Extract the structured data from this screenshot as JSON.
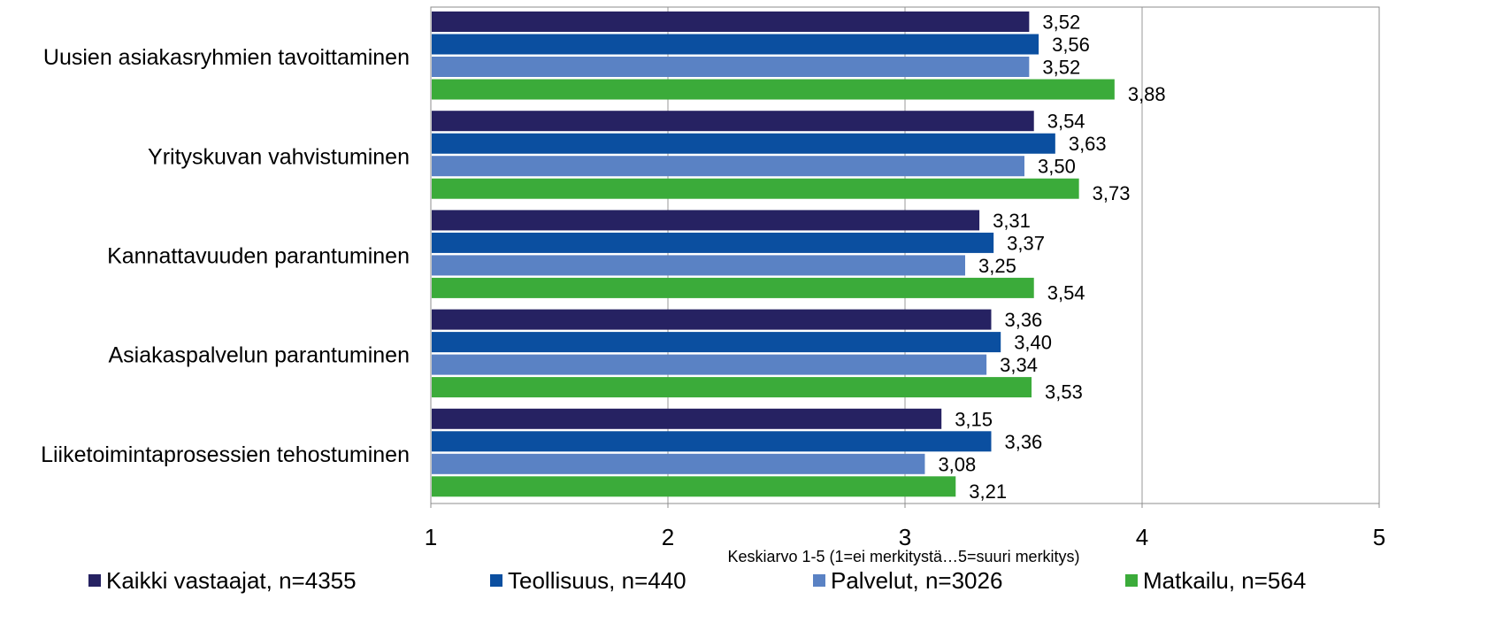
{
  "chart_data": {
    "type": "bar",
    "orientation": "horizontal",
    "categories": [
      "Uusien asiakasryhmien tavoittaminen",
      "Yrityskuvan vahvistuminen",
      "Kannattavuuden parantuminen",
      "Asiakaspalvelun parantuminen",
      "Liiketoimintaprosessien tehostuminen"
    ],
    "series": [
      {
        "name": "Kaikki vastaajat, n=4355",
        "color": "#262262",
        "values": [
          3.52,
          3.54,
          3.31,
          3.36,
          3.15
        ],
        "labels": [
          "3,52",
          "3,54",
          "3,31",
          "3,36",
          "3,15"
        ]
      },
      {
        "name": "Teollisuus, n=440",
        "color": "#0b4fa0",
        "values": [
          3.56,
          3.63,
          3.37,
          3.4,
          3.36
        ],
        "labels": [
          "3,56",
          "3,63",
          "3,37",
          "3,40",
          "3,36"
        ]
      },
      {
        "name": "Palvelut, n=3026",
        "color": "#5a82c4",
        "values": [
          3.52,
          3.5,
          3.25,
          3.34,
          3.08
        ],
        "labels": [
          "3,52",
          "3,50",
          "3,25",
          "3,34",
          "3,08"
        ]
      },
      {
        "name": "Matkailu, n=564",
        "color": "#3bab3a",
        "values": [
          3.88,
          3.73,
          3.54,
          3.53,
          3.21
        ],
        "labels": [
          "3,88",
          "3,73",
          "3,54",
          "3,53",
          "3,21"
        ]
      }
    ],
    "xlim": [
      1,
      5
    ],
    "ticks": [
      "1",
      "2",
      "3",
      "4",
      "5"
    ],
    "xlabel": "Keskiarvo 1-5 (1=ei merkitystä…5=suuri merkitys)",
    "gridlines": "vertical",
    "legend_position": "bottom"
  }
}
